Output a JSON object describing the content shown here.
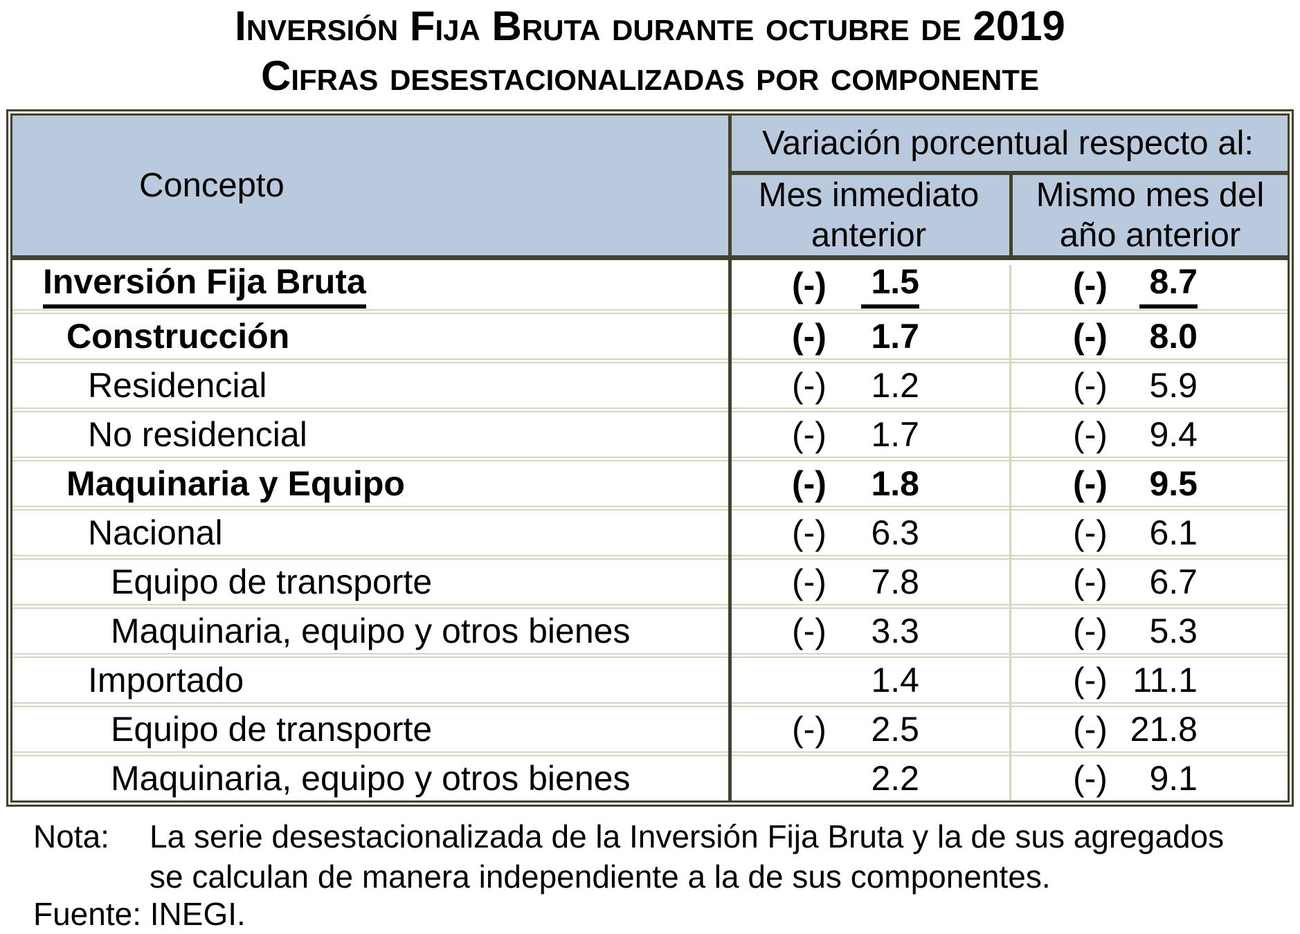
{
  "title": {
    "line1": "Inversión Fija Bruta durante octubre de 2019",
    "line2": "Cifras desestacionalizadas por componente"
  },
  "table": {
    "concepto_header": "Concepto",
    "span_header": "Variación porcentual respecto al:",
    "col_headers": [
      "Mes inmediato anterior",
      "Mismo mes del año anterior"
    ],
    "rows": [
      {
        "label": "Inversión Fija Bruta",
        "level": 0,
        "bold": true,
        "underline": true,
        "mom_sign": "(-)",
        "mom": "1.5",
        "yoy_sign": "(-)",
        "yoy": "8.7"
      },
      {
        "label": "Construcción",
        "level": 1,
        "bold": true,
        "underline": false,
        "mom_sign": "(-)",
        "mom": "1.7",
        "yoy_sign": "(-)",
        "yoy": "8.0"
      },
      {
        "label": "Residencial",
        "level": 2,
        "bold": false,
        "underline": false,
        "mom_sign": "(-)",
        "mom": "1.2",
        "yoy_sign": "(-)",
        "yoy": "5.9"
      },
      {
        "label": "No residencial",
        "level": 2,
        "bold": false,
        "underline": false,
        "mom_sign": "(-)",
        "mom": "1.7",
        "yoy_sign": "(-)",
        "yoy": "9.4"
      },
      {
        "label": "Maquinaria y Equipo",
        "level": 1,
        "bold": true,
        "underline": false,
        "mom_sign": "(-)",
        "mom": "1.8",
        "yoy_sign": "(-)",
        "yoy": "9.5"
      },
      {
        "label": "Nacional",
        "level": 2,
        "bold": false,
        "underline": false,
        "mom_sign": "(-)",
        "mom": "6.3",
        "yoy_sign": "(-)",
        "yoy": "6.1"
      },
      {
        "label": "Equipo de transporte",
        "level": 3,
        "bold": false,
        "underline": false,
        "mom_sign": "(-)",
        "mom": "7.8",
        "yoy_sign": "(-)",
        "yoy": "6.7"
      },
      {
        "label": "Maquinaria, equipo y otros bienes",
        "level": 3,
        "bold": false,
        "underline": false,
        "mom_sign": "(-)",
        "mom": "3.3",
        "yoy_sign": "(-)",
        "yoy": "5.3"
      },
      {
        "label": "Importado",
        "level": 2,
        "bold": false,
        "underline": false,
        "mom_sign": "",
        "mom": "1.4",
        "yoy_sign": "(-)",
        "yoy": "11.1"
      },
      {
        "label": "Equipo de transporte",
        "level": 3,
        "bold": false,
        "underline": false,
        "mom_sign": "(-)",
        "mom": "2.5",
        "yoy_sign": "(-)",
        "yoy": "21.8"
      },
      {
        "label": "Maquinaria, equipo y otros bienes",
        "level": 3,
        "bold": false,
        "underline": false,
        "mom_sign": "",
        "mom": "2.2",
        "yoy_sign": "(-)",
        "yoy": "9.1"
      }
    ]
  },
  "footer": {
    "nota_label": "Nota:",
    "nota_line1": "La serie desestacionalizada de la Inversión Fija Bruta y la de sus agregados",
    "nota_line2": "se calculan de manera independiente a la de sus componentes.",
    "fuente": "Fuente: INEGI."
  },
  "colors": {
    "header_bg": "#bacade",
    "border_dark": "#42432f",
    "row_line_light": "#d9d4be"
  }
}
